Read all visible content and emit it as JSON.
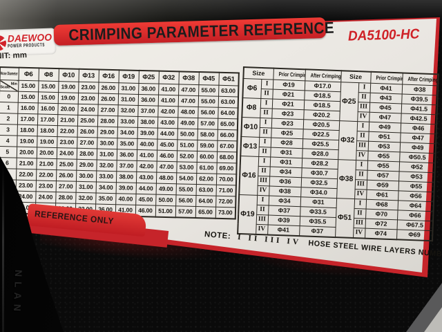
{
  "brand": {
    "name": "DAEWOO",
    "sub": "POWER PRODUCTS"
  },
  "title": "CRIMPING PARAMETER REFERENCE",
  "model": "DA5100-HC",
  "unit_label": "UNIT: mm",
  "stamp": "REFERENCE ONLY",
  "note": {
    "label": "NOTE:",
    "numerals": "I II III IV",
    "text": "HOSE STEEL WIRE LAYERS NUMBER"
  },
  "embossed_text": "NLAN",
  "colors": {
    "label_red": "#d2232a",
    "label_bg": "#ebe8e3",
    "text_dark": "#16130e"
  },
  "scale_table": {
    "corner_top": "Hose Diameter",
    "corner_bottom": "Scale",
    "min_label": "Min",
    "columns": [
      "Φ6",
      "Φ8",
      "Φ10",
      "Φ13",
      "Φ16",
      "Φ19",
      "Φ25",
      "Φ32",
      "Φ38",
      "Φ45",
      "Φ51"
    ],
    "min_values": [
      "15.00",
      "15.00",
      "19.00",
      "23.00",
      "26.00",
      "31.00",
      "36.00",
      "41.00",
      "47.00",
      "55.00",
      "63.00"
    ],
    "rows": [
      {
        "scale": "0",
        "values": [
          "15.00",
          "15.00",
          "19.00",
          "23.00",
          "26.00",
          "31.00",
          "36.00",
          "41.00",
          "47.00",
          "55.00",
          "63.00"
        ]
      },
      {
        "scale": "1",
        "values": [
          "16.00",
          "16.00",
          "20.00",
          "24.00",
          "27.00",
          "32.00",
          "37.00",
          "42.00",
          "48.00",
          "56.00",
          "64.00"
        ]
      },
      {
        "scale": "2",
        "values": [
          "17.00",
          "17.00",
          "21.00",
          "25.00",
          "28.00",
          "33.00",
          "38.00",
          "43.00",
          "49.00",
          "57.00",
          "65.00"
        ]
      },
      {
        "scale": "3",
        "values": [
          "18.00",
          "18.00",
          "22.00",
          "26.00",
          "29.00",
          "34.00",
          "39.00",
          "44.00",
          "50.00",
          "58.00",
          "66.00"
        ]
      },
      {
        "scale": "4",
        "values": [
          "19.00",
          "19.00",
          "23.00",
          "27.00",
          "30.00",
          "35.00",
          "40.00",
          "45.00",
          "51.00",
          "59.00",
          "67.00"
        ]
      },
      {
        "scale": "5",
        "values": [
          "20.00",
          "20.00",
          "24.00",
          "28.00",
          "31.00",
          "36.00",
          "41.00",
          "46.00",
          "52.00",
          "60.00",
          "68.00"
        ]
      },
      {
        "scale": "6",
        "values": [
          "21.00",
          "21.00",
          "25.00",
          "29.00",
          "32.00",
          "37.00",
          "42.00",
          "47.00",
          "53.00",
          "61.00",
          "69.00"
        ]
      },
      {
        "scale": "7",
        "values": [
          "22.00",
          "22.00",
          "26.00",
          "30.00",
          "33.00",
          "38.00",
          "43.00",
          "48.00",
          "54.00",
          "62.00",
          "70.00"
        ]
      },
      {
        "scale": "8",
        "values": [
          "23.00",
          "23.00",
          "27.00",
          "31.00",
          "34.00",
          "39.00",
          "44.00",
          "49.00",
          "55.00",
          "63.00",
          "71.00"
        ]
      },
      {
        "scale": "9",
        "values": [
          "24.00",
          "24.00",
          "28.00",
          "32.00",
          "35.00",
          "40.00",
          "45.00",
          "50.00",
          "56.00",
          "64.00",
          "72.00"
        ]
      },
      {
        "scale": "10",
        "values": [
          "25.00",
          "25.00",
          "29.00",
          "33.00",
          "36.00",
          "41.00",
          "46.00",
          "51.00",
          "57.00",
          "65.00",
          "73.00"
        ]
      }
    ]
  },
  "crimp_table": {
    "headers": {
      "size": "Size",
      "prior": "Prior Crimping",
      "after": "After Crimping"
    },
    "left_groups": [
      {
        "size": "Φ6",
        "rows": [
          [
            "I",
            "Φ19",
            "Φ17.0"
          ],
          [
            "II",
            "Φ21",
            "Φ18.5"
          ]
        ]
      },
      {
        "size": "Φ8",
        "rows": [
          [
            "I",
            "Φ21",
            "Φ18.5"
          ],
          [
            "II",
            "Φ23",
            "Φ20.2"
          ]
        ]
      },
      {
        "size": "Φ10",
        "rows": [
          [
            "I",
            "Φ23",
            "Φ20.5"
          ],
          [
            "II",
            "Φ25",
            "Φ22.5"
          ]
        ]
      },
      {
        "size": "Φ13",
        "rows": [
          [
            "I",
            "Φ28",
            "Φ25.5"
          ],
          [
            "II",
            "Φ31",
            "Φ28.0"
          ]
        ]
      },
      {
        "size": "Φ16",
        "rows": [
          [
            "I",
            "Φ31",
            "Φ28.2"
          ],
          [
            "II",
            "Φ34",
            "Φ30.7"
          ],
          [
            "III",
            "Φ36",
            "Φ32.5"
          ],
          [
            "IV",
            "Φ38",
            "Φ34.0"
          ]
        ]
      },
      {
        "size": "Φ19",
        "rows": [
          [
            "I",
            "Φ34",
            "Φ31"
          ],
          [
            "II",
            "Φ37",
            "Φ33.5"
          ],
          [
            "III",
            "Φ39",
            "Φ35.5"
          ],
          [
            "IV",
            "Φ41",
            "Φ37"
          ]
        ]
      }
    ],
    "right_groups": [
      {
        "size": "Φ25",
        "rows": [
          [
            "I",
            "Φ41",
            "Φ38"
          ],
          [
            "II",
            "Φ43",
            "Φ39.5"
          ],
          [
            "III",
            "Φ45",
            "Φ41.5"
          ],
          [
            "IV",
            "Φ47",
            "Φ42.5"
          ]
        ]
      },
      {
        "size": "Φ32",
        "rows": [
          [
            "I",
            "Φ49",
            "Φ46"
          ],
          [
            "II",
            "Φ51",
            "Φ47"
          ],
          [
            "III",
            "Φ53",
            "Φ49"
          ],
          [
            "IV",
            "Φ55",
            "Φ50.5"
          ]
        ]
      },
      {
        "size": "Φ38",
        "rows": [
          [
            "I",
            "Φ55",
            "Φ52"
          ],
          [
            "II",
            "Φ57",
            "Φ53"
          ],
          [
            "III",
            "Φ59",
            "Φ55"
          ],
          [
            "IV",
            "Φ61",
            "Φ56"
          ]
        ]
      },
      {
        "size": "Φ51",
        "rows": [
          [
            "I",
            "Φ68",
            "Φ64"
          ],
          [
            "II",
            "Φ70",
            "Φ66"
          ],
          [
            "III",
            "Φ72",
            "Φ67.5"
          ],
          [
            "IV",
            "Φ74",
            "Φ69"
          ]
        ]
      }
    ]
  }
}
